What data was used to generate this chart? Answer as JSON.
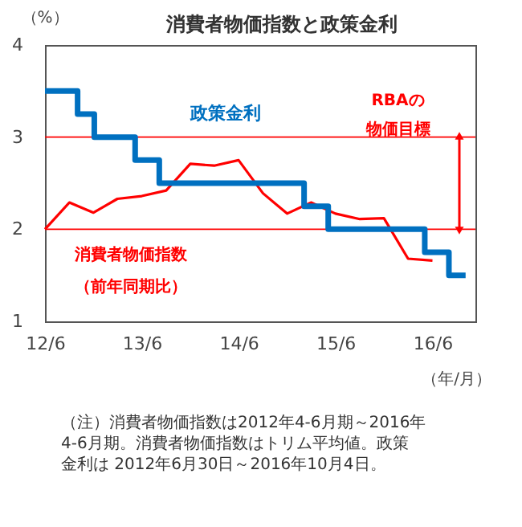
{
  "chart_data": {
    "type": "line",
    "title": "消費者物価指数と政策金利",
    "ylabel": "（%）",
    "xlabel": "（年/月）",
    "series": [
      {
        "name": "政策金利",
        "type": "step",
        "color": "#0070c0",
        "x": [
          "2012-06",
          "2012-10-02",
          "2012-12-04",
          "2013-05-07",
          "2013-08-06",
          "2015-02-03",
          "2015-05-05",
          "2016-05-03",
          "2016-08-02",
          "2016-10-04"
        ],
        "values": [
          3.5,
          3.25,
          3.0,
          2.75,
          2.5,
          2.25,
          2.0,
          1.75,
          1.5,
          1.5
        ]
      },
      {
        "name": "消費者物価指数（前年同期比）",
        "color": "#ff0000",
        "x": [
          "2012-06",
          "2012-09",
          "2012-12",
          "2013-03",
          "2013-06",
          "2013-09",
          "2013-12",
          "2014-03",
          "2014-06",
          "2014-09",
          "2014-12",
          "2015-03",
          "2015-06",
          "2015-09",
          "2015-12",
          "2016-03",
          "2016-06"
        ],
        "values": [
          2.0,
          2.29,
          2.18,
          2.33,
          2.36,
          2.42,
          2.71,
          2.69,
          2.75,
          2.39,
          2.17,
          2.29,
          2.17,
          2.11,
          2.12,
          1.68,
          1.66
        ]
      }
    ],
    "xlim": [
      "2012-06",
      "2016-11-10"
    ],
    "xticks": [
      {
        "value": "2012-06",
        "label": "12/6"
      },
      {
        "value": "2013-06",
        "label": "13/6"
      },
      {
        "value": "2014-06",
        "label": "14/6"
      },
      {
        "value": "2015-06",
        "label": "15/6"
      },
      {
        "value": "2016-06",
        "label": "16/6"
      }
    ],
    "ylim": [
      1,
      4
    ],
    "yticks": [
      1,
      2,
      3,
      4
    ],
    "grid": false,
    "legend": false,
    "ref_lines": [
      {
        "axis": "y",
        "value": 2,
        "color": "#ff0000"
      },
      {
        "axis": "y",
        "value": 3,
        "color": "#ff0000"
      }
    ],
    "annotations": [
      "RBAの物価目標",
      "（注）消費者物価指数は2012年4-6月期～2016年4-6月期。消費者物価指数はトリム平均値。政策金利は 2012年6月30日～2016年10月4日。"
    ]
  }
}
